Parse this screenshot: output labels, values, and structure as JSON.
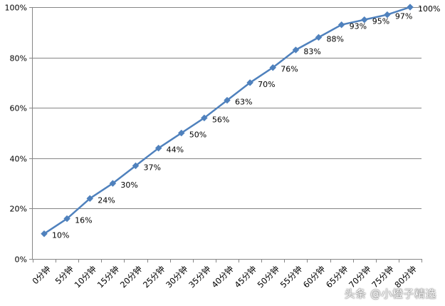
{
  "chart_data": {
    "type": "line",
    "categories": [
      "0分钟",
      "5分钟",
      "10分钟",
      "15分钟",
      "20分钟",
      "25分钟",
      "30分钟",
      "35分钟",
      "40分钟",
      "45分钟",
      "50分钟",
      "55分钟",
      "60分钟",
      "65分钟",
      "70分钟",
      "75分钟",
      "80分钟"
    ],
    "series": [
      {
        "values": [
          10,
          16,
          24,
          30,
          37,
          44,
          50,
          56,
          63,
          70,
          76,
          83,
          88,
          93,
          95,
          97,
          100
        ],
        "labels": [
          "10%",
          "16%",
          "24%",
          "30%",
          "37%",
          "44%",
          "50%",
          "56%",
          "63%",
          "70%",
          "76%",
          "83%",
          "88%",
          "93%",
          "95%",
          "97%",
          "100%"
        ],
        "color": "#4F81BD",
        "marker": "diamond"
      }
    ],
    "title": "",
    "xlabel": "",
    "ylabel": "",
    "ylim": [
      0,
      100
    ],
    "yticks": [
      "0%",
      "20%",
      "40%",
      "60%",
      "80%",
      "100%"
    ],
    "grid": true,
    "legend": "none",
    "gridline_color": "#868686"
  },
  "watermark": "头条 @小橙子精选"
}
